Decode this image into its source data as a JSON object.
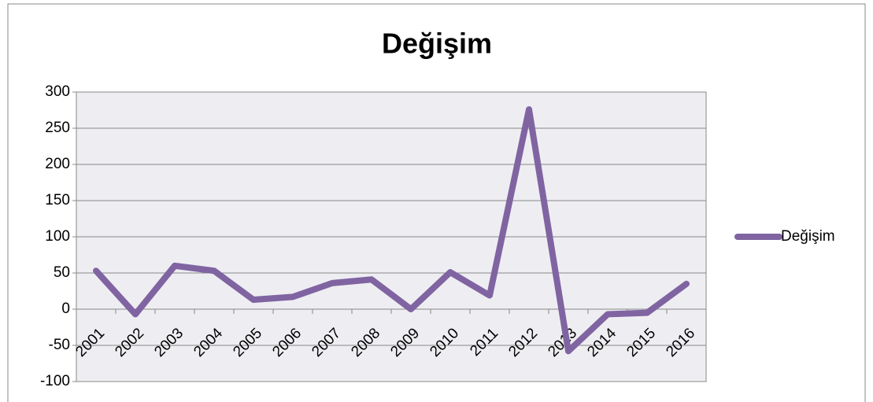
{
  "chart_data": {
    "type": "line",
    "title": "Değişim",
    "categories": [
      "2001",
      "2002",
      "2003",
      "2004",
      "2005",
      "2006",
      "2007",
      "2008",
      "2009",
      "2010",
      "2011",
      "2012",
      "2013",
      "2014",
      "2015",
      "2016"
    ],
    "series": [
      {
        "name": "Değişim",
        "color": "#8064a2",
        "values": [
          53,
          -7,
          60,
          53,
          13,
          17,
          36,
          41,
          0,
          51,
          19,
          276,
          -58,
          -7,
          -5,
          35
        ]
      }
    ],
    "ylim": [
      -100,
      300
    ],
    "yticks": [
      -100,
      -50,
      0,
      50,
      100,
      150,
      200,
      250,
      300
    ],
    "grid": true,
    "legend": "right"
  }
}
